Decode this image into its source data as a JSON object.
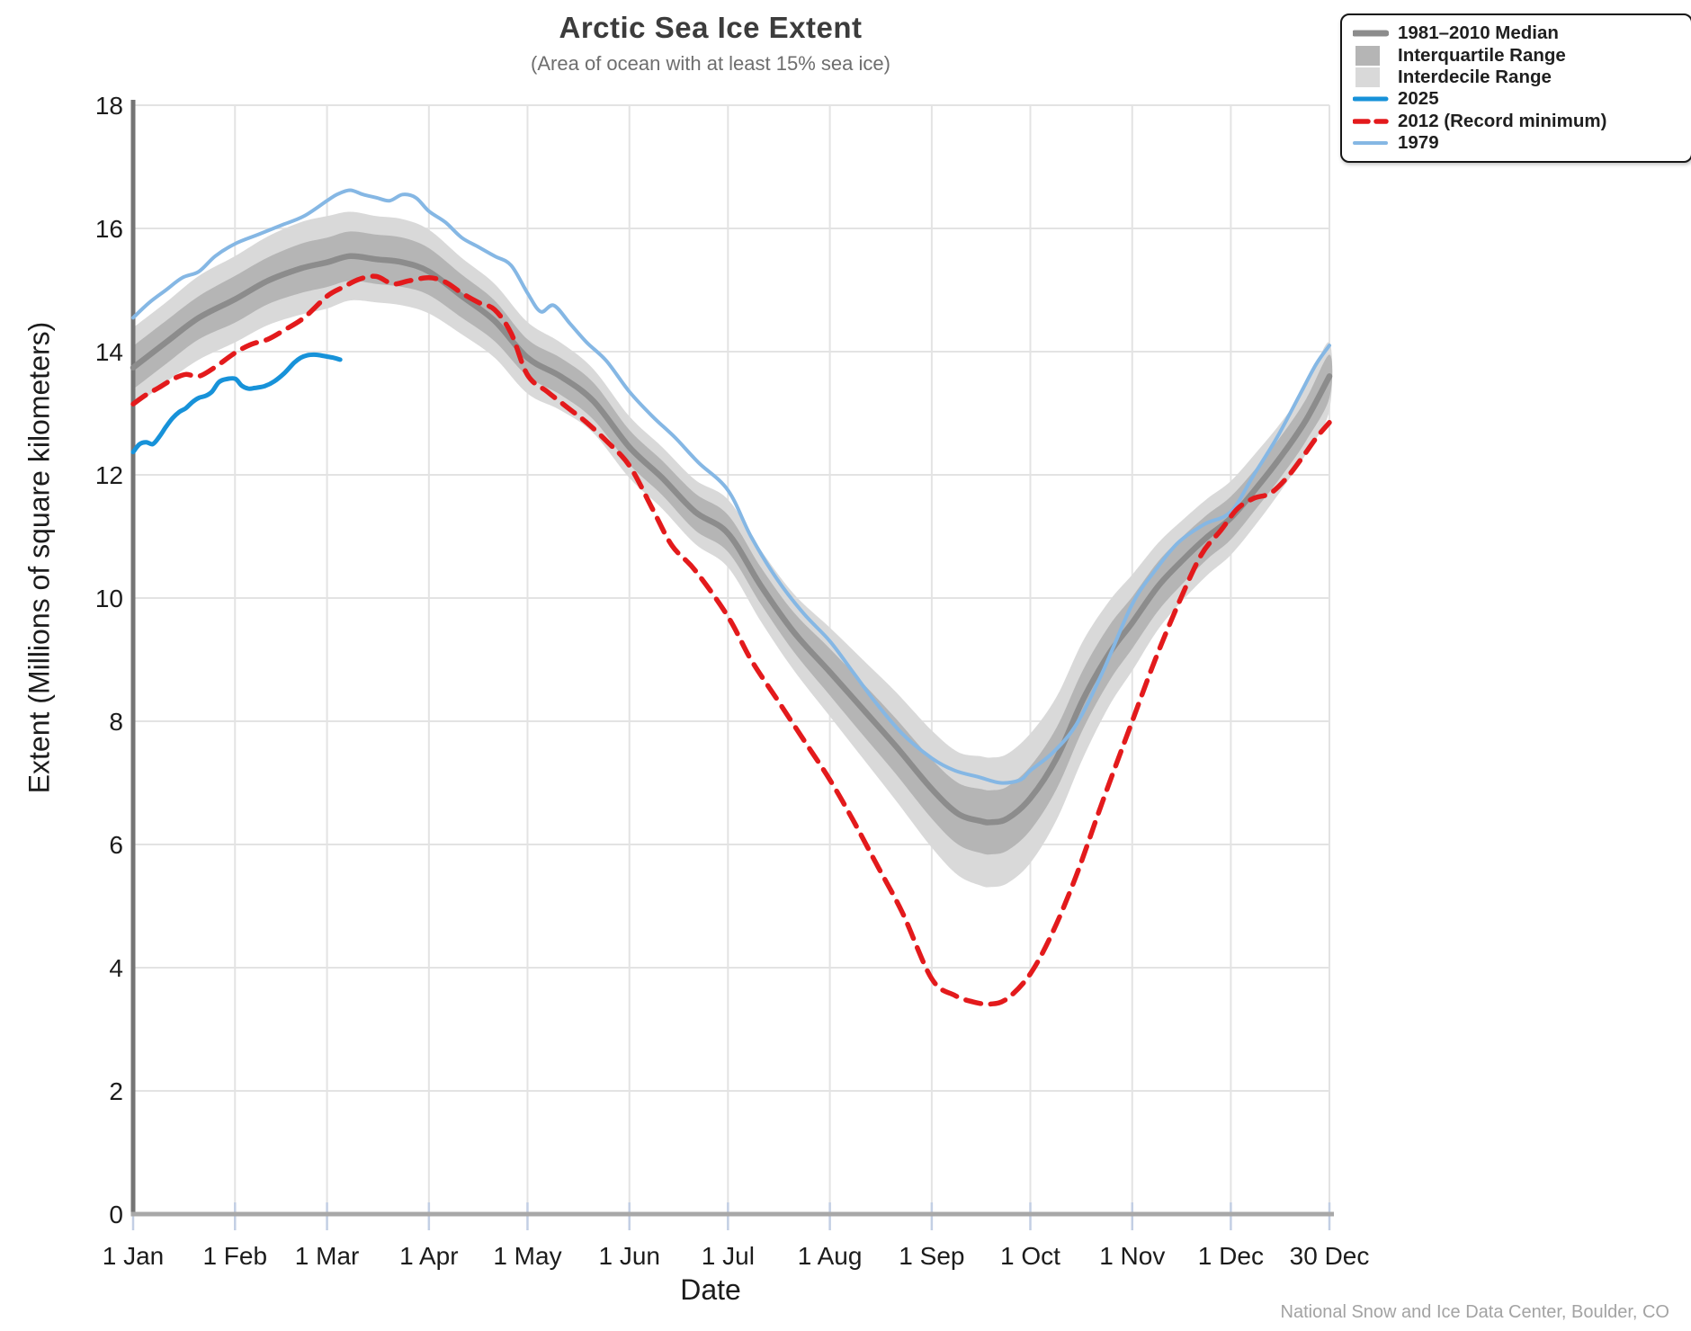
{
  "footer": {
    "credit": "National Snow and Ice Data Center, Boulder, CO"
  },
  "legend": {
    "items": [
      {
        "label": "1981–2010 Median",
        "swatch": "line",
        "color": "#8c8c8c",
        "thickness": 7
      },
      {
        "label": "Interquartile Range",
        "swatch": "box",
        "color": "#b5b5b5",
        "thickness": 0
      },
      {
        "label": "Interdecile Range",
        "swatch": "box",
        "color": "#d9d9d9",
        "thickness": 0
      },
      {
        "label": "2025",
        "swatch": "line",
        "color": "#1792d9",
        "thickness": 5
      },
      {
        "label": "2012 (Record minimum)",
        "swatch": "dashed-line",
        "color": "#e31a1c",
        "thickness": 5.5
      },
      {
        "label": "1979",
        "swatch": "line",
        "color": "#85b7e4",
        "thickness": 4
      }
    ]
  },
  "colors": {
    "median": "#8c8c8c",
    "interquartile": "#b5b5b5",
    "interdecile": "#d9d9d9",
    "year_2025": "#1792d9",
    "year_2012": "#e31a1c",
    "year_1979": "#85b7e4",
    "grid": "#e3e3e3",
    "axis_left": "#757575",
    "axis_bottom": "#a8a8a8",
    "tick": "#c3cfe4",
    "text": "#1c1c1c"
  },
  "chart_data": {
    "type": "line",
    "title": "Arctic Sea Ice Extent",
    "subtitle": "(Area of ocean with at least 15% sea ice)",
    "xlabel": "Date",
    "ylabel": "Extent (Millions of square kilometers)",
    "x_unit": "day of year (0 = 1 Jan)",
    "xlim": [
      0,
      364
    ],
    "ylim": [
      0,
      18
    ],
    "grid": true,
    "legend_position": "top-right",
    "y_ticks": [
      0,
      2,
      4,
      6,
      8,
      10,
      12,
      14,
      16,
      18
    ],
    "x_ticks": [
      {
        "day": 0,
        "label": "1 Jan"
      },
      {
        "day": 31,
        "label": "1 Feb"
      },
      {
        "day": 59,
        "label": "1 Mar"
      },
      {
        "day": 90,
        "label": "1 Apr"
      },
      {
        "day": 120,
        "label": "1 May"
      },
      {
        "day": 151,
        "label": "1 Jun"
      },
      {
        "day": 181,
        "label": "1 Jul"
      },
      {
        "day": 212,
        "label": "1 Aug"
      },
      {
        "day": 243,
        "label": "1 Sep"
      },
      {
        "day": 273,
        "label": "1 Oct"
      },
      {
        "day": 304,
        "label": "1 Nov"
      },
      {
        "day": 334,
        "label": "1 Dec"
      },
      {
        "day": 364,
        "label": "30 Dec"
      }
    ],
    "bands": {
      "days": [
        0,
        10,
        20,
        31,
        41,
        51,
        59,
        66,
        74,
        82,
        90,
        100,
        110,
        120,
        130,
        140,
        151,
        161,
        171,
        181,
        191,
        201,
        212,
        222,
        232,
        243,
        251,
        258,
        261,
        266,
        273,
        281,
        289,
        297,
        304,
        312,
        320,
        327,
        334,
        342,
        350,
        357,
        364
      ],
      "iqr_lo": [
        13.39,
        13.8,
        14.2,
        14.47,
        14.77,
        14.95,
        15.05,
        15.15,
        15.1,
        15.05,
        14.92,
        14.55,
        14.17,
        13.6,
        13.3,
        12.9,
        12.17,
        11.67,
        11.1,
        10.75,
        9.9,
        9.13,
        8.42,
        7.78,
        7.15,
        6.42,
        6.0,
        5.86,
        5.84,
        5.9,
        6.23,
        6.9,
        7.87,
        8.65,
        9.18,
        9.8,
        10.27,
        10.64,
        10.95,
        11.47,
        12.02,
        12.56,
        13.25
      ],
      "iqr_hi": [
        14.09,
        14.5,
        14.9,
        15.23,
        15.53,
        15.75,
        15.85,
        15.95,
        15.9,
        15.85,
        15.68,
        15.25,
        14.83,
        14.2,
        13.9,
        13.5,
        12.73,
        12.23,
        11.7,
        11.35,
        10.5,
        9.77,
        9.18,
        8.62,
        8.05,
        7.38,
        7.0,
        6.9,
        6.88,
        6.94,
        7.27,
        7.9,
        8.83,
        9.55,
        10.02,
        10.6,
        11.03,
        11.36,
        11.65,
        12.13,
        12.68,
        13.24,
        13.95
      ],
      "idr_lo": [
        13.09,
        13.5,
        13.87,
        14.15,
        14.43,
        14.6,
        14.7,
        14.83,
        14.8,
        14.75,
        14.62,
        14.28,
        13.9,
        13.32,
        13.05,
        12.68,
        11.95,
        11.45,
        10.88,
        10.5,
        9.62,
        8.83,
        8.08,
        7.4,
        6.72,
        5.95,
        5.5,
        5.33,
        5.31,
        5.37,
        5.7,
        6.4,
        7.4,
        8.25,
        8.82,
        9.5,
        10.0,
        10.38,
        10.7,
        11.22,
        11.8,
        12.35,
        13.05
      ],
      "idr_hi": [
        14.39,
        14.8,
        15.23,
        15.55,
        15.87,
        16.1,
        16.2,
        16.27,
        16.2,
        16.15,
        15.98,
        15.52,
        15.1,
        14.48,
        14.15,
        13.72,
        12.95,
        12.45,
        11.92,
        11.6,
        10.78,
        10.07,
        9.52,
        9.0,
        8.48,
        7.85,
        7.5,
        7.43,
        7.41,
        7.47,
        7.8,
        8.4,
        9.3,
        9.95,
        10.38,
        10.9,
        11.3,
        11.62,
        11.9,
        12.38,
        12.9,
        13.45,
        14.15
      ]
    },
    "series": [
      {
        "id": "median",
        "name": "1981–2010 Median",
        "color": "#8c8c8c",
        "width": 6.5,
        "dash": null,
        "days": [
          0,
          10,
          20,
          31,
          41,
          51,
          59,
          66,
          74,
          82,
          90,
          100,
          110,
          120,
          130,
          140,
          151,
          161,
          171,
          181,
          191,
          201,
          212,
          222,
          232,
          243,
          251,
          258,
          261,
          266,
          273,
          281,
          289,
          297,
          304,
          312,
          320,
          327,
          334,
          342,
          350,
          357,
          364
        ],
        "values": [
          13.74,
          14.15,
          14.55,
          14.85,
          15.15,
          15.35,
          15.45,
          15.55,
          15.5,
          15.45,
          15.3,
          14.9,
          14.5,
          13.9,
          13.6,
          13.2,
          12.45,
          11.95,
          11.4,
          11.05,
          10.2,
          9.45,
          8.8,
          8.2,
          7.6,
          6.9,
          6.5,
          6.38,
          6.36,
          6.42,
          6.75,
          7.4,
          8.35,
          9.1,
          9.6,
          10.2,
          10.65,
          11.0,
          11.3,
          11.8,
          12.35,
          12.9,
          13.6
        ]
      },
      {
        "id": "y1979",
        "name": "1979",
        "color": "#85b7e4",
        "width": 4,
        "dash": null,
        "days": [
          0,
          5,
          10,
          15,
          20,
          25,
          31,
          38,
          45,
          52,
          59,
          62,
          66,
          70,
          74,
          78,
          82,
          86,
          90,
          95,
          100,
          105,
          110,
          115,
          120,
          124,
          128,
          133,
          138,
          144,
          151,
          158,
          165,
          172,
          181,
          188,
          196,
          204,
          212,
          219,
          226,
          234,
          243,
          250,
          257,
          264,
          270,
          273,
          280,
          287,
          295,
          304,
          311,
          318,
          326,
          334,
          341,
          348,
          355,
          360,
          364
        ],
        "values": [
          14.55,
          14.8,
          15.0,
          15.2,
          15.3,
          15.55,
          15.75,
          15.9,
          16.05,
          16.2,
          16.45,
          16.55,
          16.62,
          16.55,
          16.5,
          16.45,
          16.55,
          16.5,
          16.28,
          16.1,
          15.85,
          15.7,
          15.55,
          15.4,
          14.95,
          14.65,
          14.75,
          14.45,
          14.15,
          13.85,
          13.35,
          12.95,
          12.6,
          12.2,
          11.75,
          11.0,
          10.3,
          9.75,
          9.3,
          8.8,
          8.3,
          7.8,
          7.4,
          7.2,
          7.1,
          7.0,
          7.05,
          7.2,
          7.5,
          7.95,
          8.8,
          9.9,
          10.45,
          10.9,
          11.2,
          11.4,
          12.0,
          12.6,
          13.3,
          13.8,
          14.1
        ]
      },
      {
        "id": "y2012",
        "name": "2012 (Record minimum)",
        "color": "#e31a1c",
        "width": 5.5,
        "dash": [
          17,
          11
        ],
        "days": [
          0,
          4,
          8,
          12,
          16,
          20,
          25,
          31,
          36,
          41,
          46,
          52,
          59,
          64,
          69,
          74,
          79,
          84,
          90,
          95,
          100,
          105,
          110,
          115,
          120,
          126,
          132,
          138,
          144,
          151,
          158,
          164,
          171,
          181,
          188,
          196,
          204,
          212,
          219,
          226,
          234,
          243,
          250,
          256,
          261,
          266,
          273,
          280,
          287,
          295,
          304,
          311,
          318,
          325,
          331,
          336,
          341,
          346,
          351,
          356,
          360,
          364
        ],
        "values": [
          13.15,
          13.3,
          13.42,
          13.55,
          13.63,
          13.6,
          13.75,
          13.98,
          14.12,
          14.2,
          14.35,
          14.55,
          14.9,
          15.05,
          15.18,
          15.22,
          15.1,
          15.15,
          15.2,
          15.13,
          14.95,
          14.8,
          14.68,
          14.3,
          13.62,
          13.35,
          13.1,
          12.85,
          12.55,
          12.15,
          11.45,
          10.85,
          10.45,
          9.7,
          9.0,
          8.35,
          7.7,
          7.05,
          6.4,
          5.7,
          4.9,
          3.82,
          3.55,
          3.44,
          3.41,
          3.5,
          3.9,
          4.6,
          5.5,
          6.7,
          8.0,
          9.0,
          9.9,
          10.7,
          11.1,
          11.45,
          11.62,
          11.7,
          11.95,
          12.3,
          12.6,
          12.85
        ]
      },
      {
        "id": "y2025",
        "name": "2025",
        "color": "#1792d9",
        "width": 5,
        "dash": null,
        "days": [
          0,
          2,
          4,
          6,
          8,
          10,
          12,
          14,
          16,
          18,
          20,
          22,
          24,
          26,
          28,
          31,
          33,
          35,
          37,
          40,
          43,
          46,
          49,
          51,
          53,
          55,
          57,
          59,
          61,
          63
        ],
        "values": [
          12.37,
          12.5,
          12.53,
          12.5,
          12.62,
          12.78,
          12.92,
          13.02,
          13.08,
          13.18,
          13.25,
          13.28,
          13.35,
          13.5,
          13.55,
          13.56,
          13.45,
          13.4,
          13.41,
          13.44,
          13.52,
          13.65,
          13.82,
          13.9,
          13.94,
          13.95,
          13.94,
          13.92,
          13.9,
          13.87
        ]
      }
    ]
  }
}
